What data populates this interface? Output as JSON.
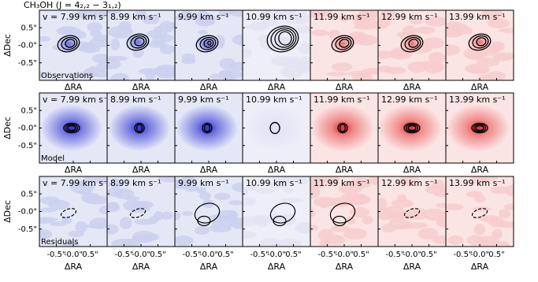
{
  "title": "CH₃OH (J = 4₂,₂ − 3₁,₂)",
  "x_label": "ΔRA",
  "y_label": "ΔDec",
  "rows": [
    {
      "label": "Observations"
    },
    {
      "label": "Model"
    },
    {
      "label": "Residuals"
    }
  ],
  "channels": [
    "v = 7.99 km s⁻¹",
    "8.99 km s⁻¹",
    "9.99 km s⁻¹",
    "10.99 km s⁻¹",
    "11.99 km s⁻¹",
    "12.99 km s⁻¹",
    "13.99 km s⁻¹"
  ],
  "xlim": [
    -1,
    1
  ],
  "ylim": [
    -1,
    1
  ],
  "xticks": [
    {
      "value": -0.5,
      "label": "-0.5\""
    },
    {
      "value": 0,
      "label": "-0.0\""
    },
    {
      "value": 0.5,
      "label": "0.5\""
    }
  ],
  "yticks": [
    {
      "value": 0.5,
      "label": "0.5\""
    },
    {
      "value": 0,
      "label": "-0.0\""
    },
    {
      "value": -0.5,
      "label": "-0.5\""
    }
  ]
}
